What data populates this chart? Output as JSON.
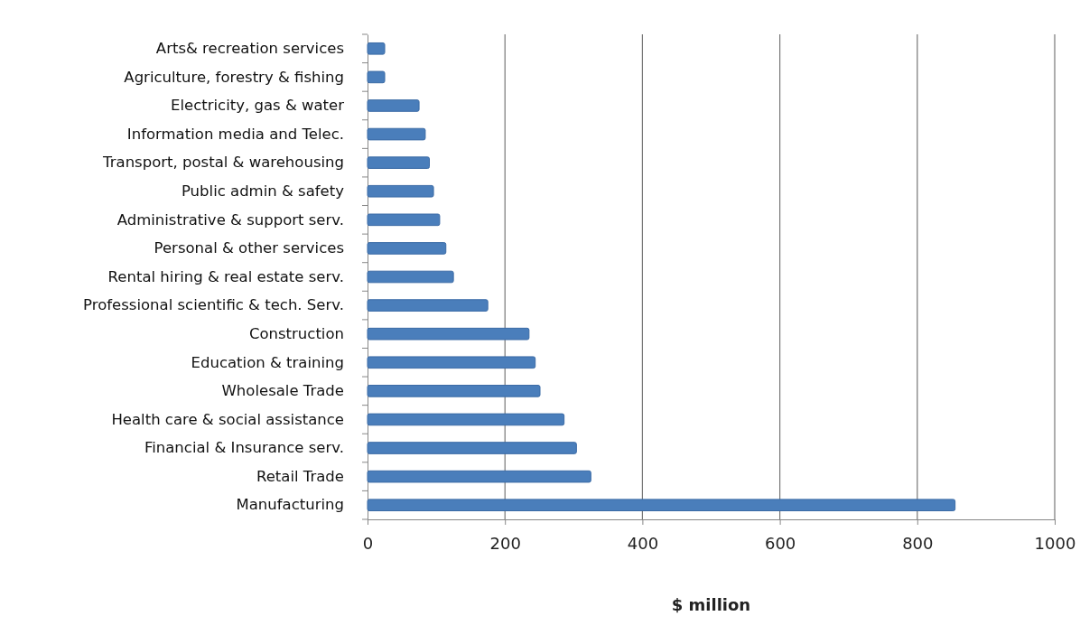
{
  "chart_data": {
    "type": "bar",
    "orientation": "horizontal",
    "xlabel": "$ million",
    "categories": [
      "Arts& recreation services",
      "Agriculture, forestry & fishing",
      "Electricity, gas & water",
      "Information media and Telec.",
      "Transport, postal & warehousing",
      "Public admin & safety",
      "Administrative & support serv.",
      "Personal & other services",
      "Rental hiring & real estate serv.",
      "Professional scientific  & tech. Serv.",
      "Construction",
      "Education & training",
      "Wholesale Trade",
      "Health care & social assistance",
      "Financial & Insurance serv.",
      "Retail Trade",
      "Manufacturing"
    ],
    "values": [
      25,
      25,
      75,
      84,
      90,
      96,
      105,
      114,
      125,
      175,
      235,
      244,
      251,
      286,
      304,
      325,
      855
    ],
    "color": "#4a7ebb",
    "xlim": [
      0,
      1000
    ],
    "xticks": [
      0,
      200,
      400,
      600,
      800,
      1000
    ],
    "grid": "x"
  }
}
